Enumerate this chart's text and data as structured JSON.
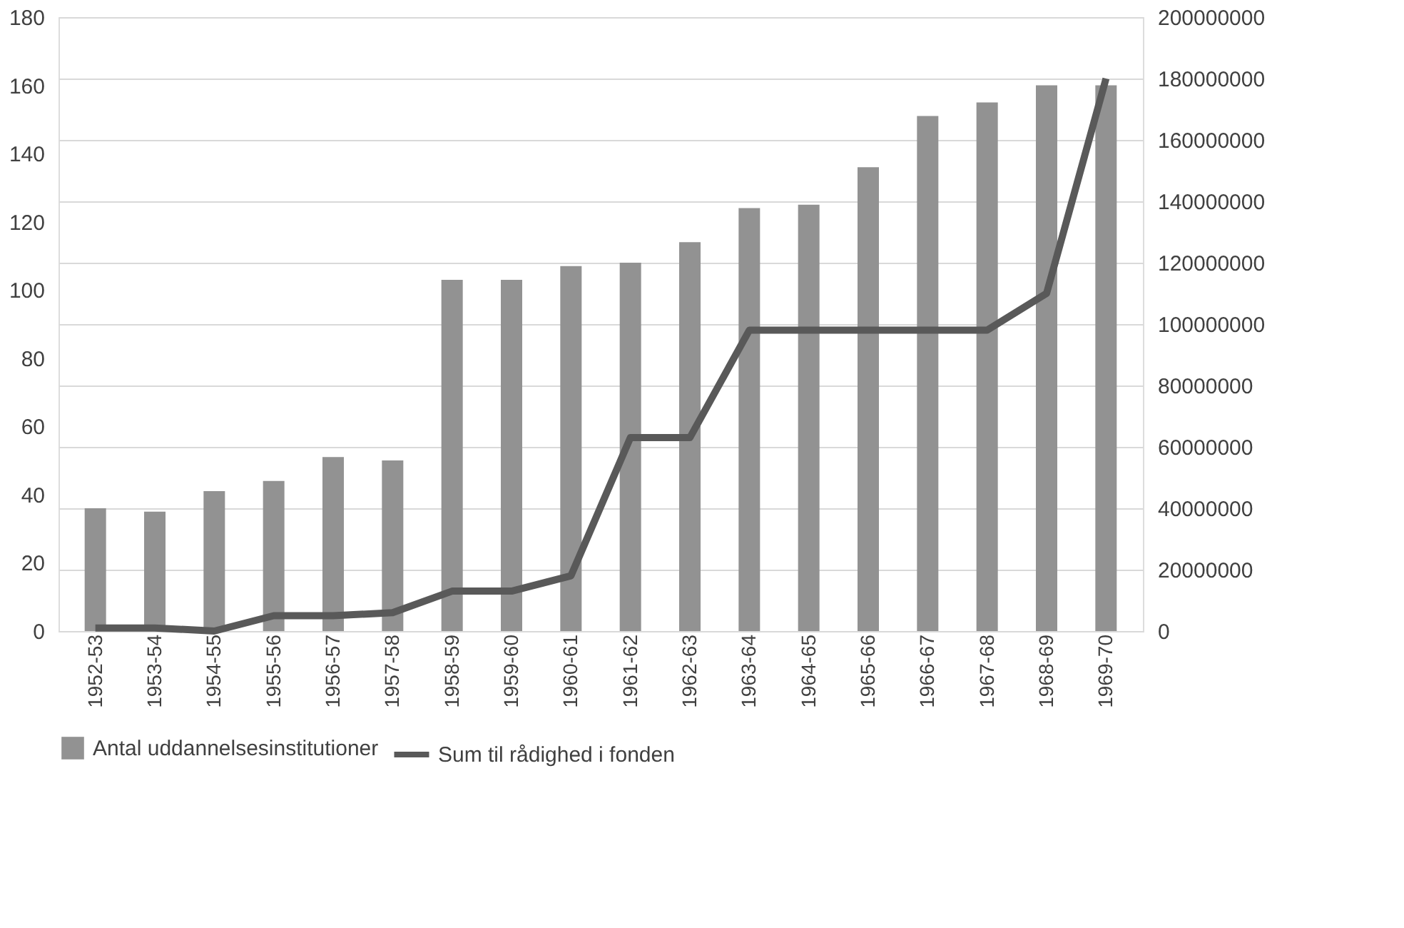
{
  "chart_data": {
    "type": "bar",
    "categories": [
      "1952-53",
      "1953-54",
      "1954-55",
      "1955-56",
      "1956-57",
      "1957-58",
      "1958-59",
      "1959-60",
      "1960-61",
      "1961-62",
      "1962-63",
      "1963-64",
      "1964-65",
      "1965-66",
      "1966-67",
      "1967-68",
      "1968-69",
      "1969-70"
    ],
    "series": [
      {
        "name": "Antal uddannelsesinstitutioner",
        "color": "#929292",
        "values": [
          36,
          35,
          41,
          44,
          51,
          50,
          103,
          103,
          107,
          108,
          114,
          124,
          125,
          136,
          151,
          155,
          160,
          160
        ]
      },
      {
        "name": "Sum til rådighed i fonden",
        "type": "line",
        "axis": "y2",
        "color": "#595959",
        "values": [
          1000000,
          1000000,
          0,
          5000000,
          5000000,
          6000000,
          13000000,
          13000000,
          18000000,
          63000000,
          63000000,
          98000000,
          98000000,
          98000000,
          98000000,
          98000000,
          110000000,
          180000000
        ]
      }
    ],
    "ylim": [
      0,
      180
    ],
    "yticks": [
      0,
      20,
      40,
      60,
      80,
      100,
      120,
      140,
      160,
      180
    ],
    "y2lim": [
      0,
      200000000
    ],
    "y2ticks": [
      0,
      20000000,
      40000000,
      60000000,
      80000000,
      100000000,
      120000000,
      140000000,
      160000000,
      180000000,
      200000000
    ],
    "grid": "y2",
    "legend": "bottom",
    "marker": "none",
    "line_style": "solid"
  }
}
